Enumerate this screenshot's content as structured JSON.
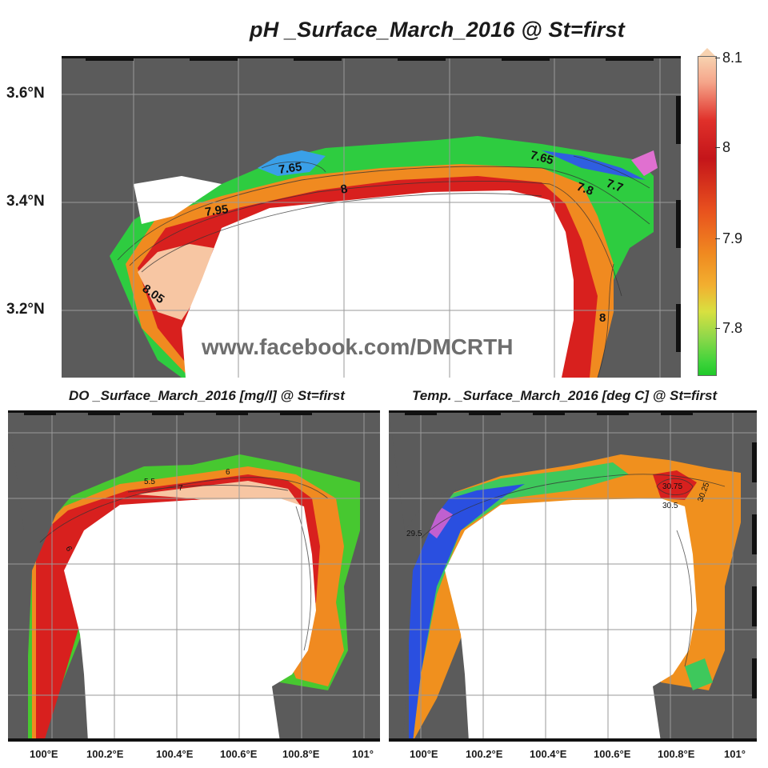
{
  "titles": {
    "main": "pH _Surface_March_2016 @ St=first",
    "do": "DO _Surface_March_2016 [mg/l] @ St=first",
    "temp": "Temp. _Surface_March_2016 [deg C] @ St=first"
  },
  "watermark": "www.facebook.com/DMCRTH",
  "latitude_labels": [
    "3.6°N",
    "3.4°N",
    "3.2°N"
  ],
  "longitude_labels_left": [
    "100°E",
    "100.2°E",
    "100.4°E",
    "100.6°E",
    "100.8°E",
    "101°"
  ],
  "longitude_labels_right": [
    "100°E",
    "100.2°E",
    "100.4°E",
    "100.6°E",
    "100.8°E",
    "101°"
  ],
  "colorbar": {
    "variable": "pH",
    "ticks": [
      "8.1",
      "8",
      "7.9",
      "7.8"
    ],
    "min": 7.75,
    "max": 8.1,
    "colors": [
      "#f7d2b0",
      "#e0302a",
      "#f08a20",
      "#3ed33a"
    ]
  },
  "ph_contour_labels": [
    "7.65",
    "7.95",
    "8.05",
    "7.8",
    "7.7",
    "8",
    "7.65",
    "8"
  ],
  "do_contour_labels": [
    "5.5",
    "7",
    "6",
    "6"
  ],
  "temp_contour_labels": [
    "30.75",
    "30.25",
    "29.5",
    "30.5"
  ],
  "colors": {
    "land": "#5b5b5b",
    "sea_white": "#ffffff",
    "grid": "#9a9a9a",
    "frame": "#111111"
  }
}
